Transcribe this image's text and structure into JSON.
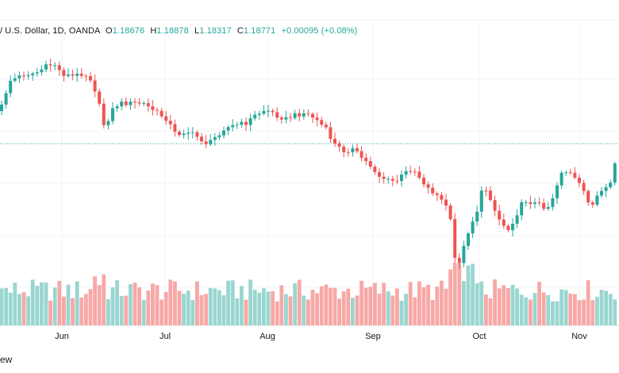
{
  "legend": {
    "symbol": "/ U.S. Dollar, 1D, OANDA",
    "open_label": "O",
    "open": "1.18676",
    "high_label": "H",
    "high": "1.18878",
    "low_label": "L",
    "low": "1.18317",
    "close_label": "C",
    "close": "1.18771",
    "change": "+0.00095 (+0.08%)"
  },
  "footer": {
    "text": "ew"
  },
  "colors": {
    "up": "#26a69a",
    "down": "#ef5350",
    "vol_up": "#9ad6d0",
    "vol_down": "#f7a8a6",
    "grid": "#f0f3fa",
    "last_line": "#26a69a"
  },
  "chart_data": {
    "type": "candlestick",
    "x_tick_labels": [
      "Jun",
      "Jul",
      "Aug",
      "Sep",
      "Oct",
      "Nov"
    ],
    "grid": true,
    "last_price_line": true,
    "volume_panel": true
  }
}
